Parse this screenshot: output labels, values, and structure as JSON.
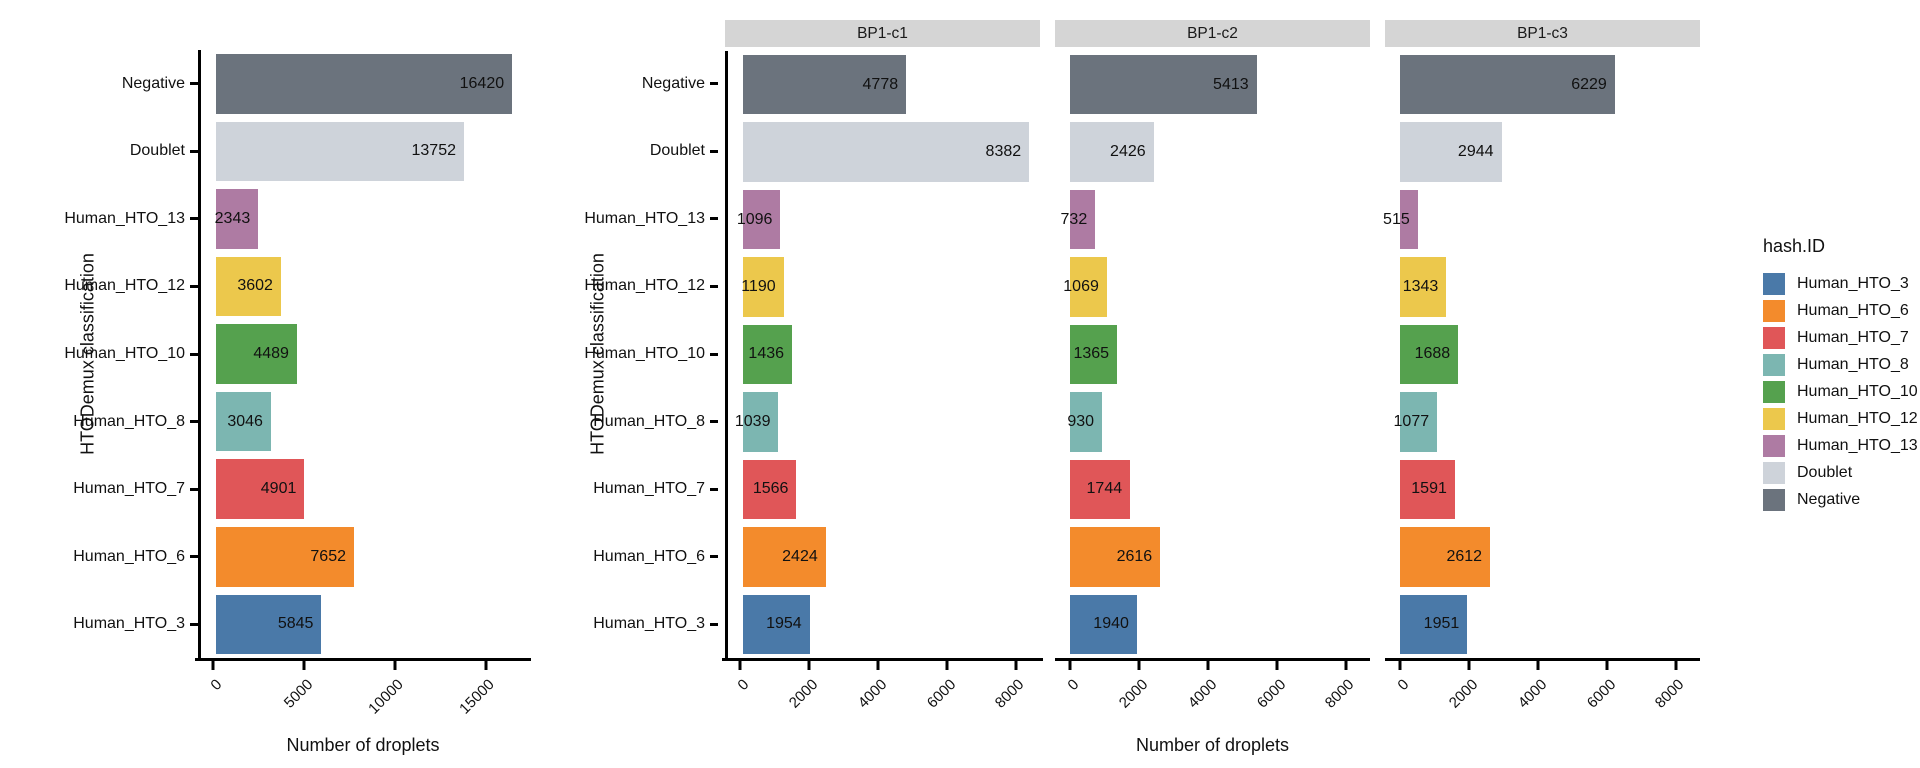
{
  "chart_data": {
    "type": "bar",
    "orientation": "horizontal",
    "xlabel": "Number of droplets",
    "ylabel": "HTODemux classification",
    "categories_top_to_bottom": [
      "Negative",
      "Doublet",
      "Human_HTO_13",
      "Human_HTO_12",
      "Human_HTO_10",
      "Human_HTO_8",
      "Human_HTO_7",
      "Human_HTO_6",
      "Human_HTO_3"
    ],
    "charts": [
      {
        "id": "overall",
        "facet": null,
        "xlim": [
          0,
          17300
        ],
        "xticks": [
          0,
          5000,
          10000,
          15000
        ],
        "values": [
          16420,
          13752,
          2343,
          3602,
          4489,
          3046,
          4901,
          7652,
          5845
        ]
      },
      {
        "id": "bp1c1",
        "facet": "BP1-c1",
        "xlim": [
          0,
          8700
        ],
        "xticks": [
          0,
          2000,
          4000,
          6000,
          8000
        ],
        "values": [
          4778,
          8382,
          1096,
          1190,
          1436,
          1039,
          1566,
          2424,
          1954
        ]
      },
      {
        "id": "bp1c2",
        "facet": "BP1-c2",
        "xlim": [
          0,
          8700
        ],
        "xticks": [
          0,
          2000,
          4000,
          6000,
          8000
        ],
        "values": [
          5413,
          2426,
          732,
          1069,
          1365,
          930,
          1744,
          2616,
          1940
        ]
      },
      {
        "id": "bp1c3",
        "facet": "BP1-c3",
        "xlim": [
          0,
          8700
        ],
        "xticks": [
          0,
          2000,
          4000,
          6000,
          8000
        ],
        "values": [
          6229,
          2944,
          515,
          1343,
          1688,
          1077,
          1591,
          2612,
          1951
        ]
      }
    ],
    "colors": {
      "Negative": "#6b737d",
      "Doublet": "#ced3da",
      "Human_HTO_13": "#ae7ba3",
      "Human_HTO_12": "#ecc84c",
      "Human_HTO_10": "#55a14e",
      "Human_HTO_8": "#7cb6b1",
      "Human_HTO_7": "#e05658",
      "Human_HTO_6": "#f38b2c",
      "Human_HTO_3": "#4a79a8"
    },
    "strip_background": "#d5d5d5",
    "grid": "off",
    "legend": {
      "title": "hash.ID",
      "position": "right",
      "items": [
        "Human_HTO_3",
        "Human_HTO_6",
        "Human_HTO_7",
        "Human_HTO_8",
        "Human_HTO_10",
        "Human_HTO_12",
        "Human_HTO_13",
        "Doublet",
        "Negative"
      ]
    }
  }
}
